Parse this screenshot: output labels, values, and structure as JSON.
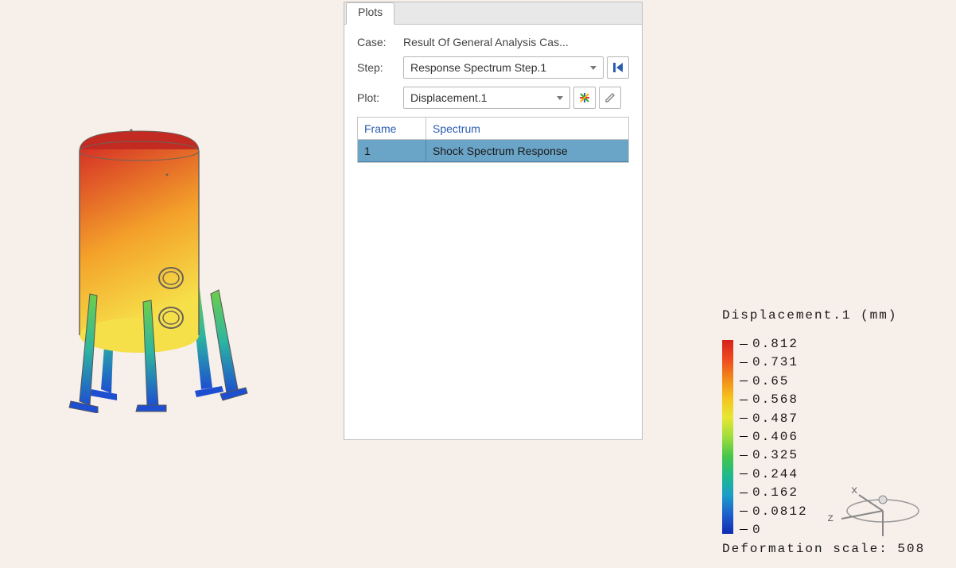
{
  "panel": {
    "tab_label": "Plots",
    "labels": {
      "case": "Case:",
      "step": "Step:",
      "plot": "Plot:"
    },
    "case_value": "Result Of General Analysis Cas...",
    "step_value": "Response Spectrum Step.1",
    "plot_value": "Displacement.1",
    "grid": {
      "headers": {
        "frame": "Frame",
        "spectrum": "Spectrum"
      },
      "row": {
        "frame": "1",
        "spectrum": "Shock Spectrum Response"
      }
    },
    "icons": {
      "step_first": "first-frame-icon",
      "plot_settings": "plot-options-icon",
      "plot_edit": "edit-icon"
    }
  },
  "legend": {
    "title": "Displacement.1 (mm)",
    "values": [
      "0.812",
      "0.731",
      "0.65",
      "0.568",
      "0.487",
      "0.406",
      "0.325",
      "0.244",
      "0.162",
      "0.0812",
      "0"
    ],
    "colors": [
      "#d4221c",
      "#ef4a1f",
      "#f28a1a",
      "#f6c41e",
      "#e7e733",
      "#9fdd3a",
      "#45c64a",
      "#1fb98c",
      "#1a9ec9",
      "#1d5fcc",
      "#102ab0"
    ],
    "deformation_label": "Deformation scale: 508"
  },
  "axis": {
    "x": "x",
    "z": "z"
  },
  "model": {
    "body_gradient": {
      "top": "#d63226",
      "mid": "#f4a32a",
      "bottom": "#f6e04a"
    },
    "leg_gradient": {
      "top": "#6fcf4a",
      "mid": "#2db5a0",
      "bottom": "#1d4fd0"
    },
    "outline": "#6d6258"
  }
}
